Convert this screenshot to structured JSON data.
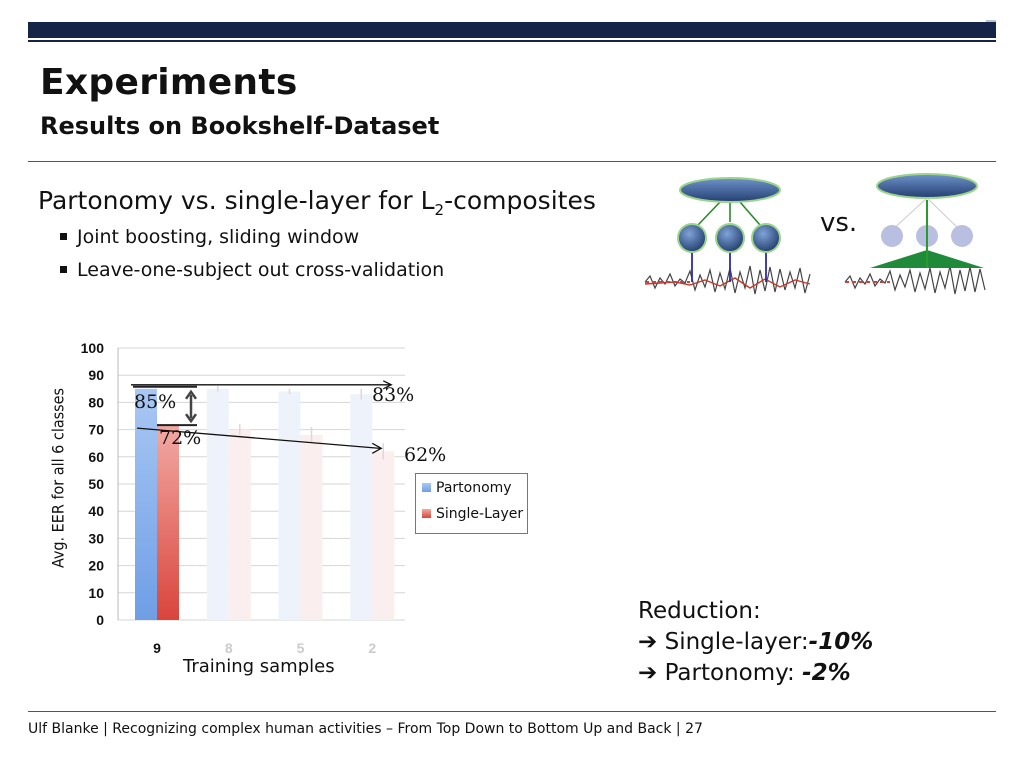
{
  "header": {
    "title": "Experiments",
    "subtitle": "Results on Bookshelf-Dataset"
  },
  "content": {
    "heading_main": "Partonomy vs. single-layer for L",
    "heading_sub": "2",
    "heading_tail": "-composites",
    "bullets": [
      "Joint boosting, sliding window",
      "Leave-one-subject out cross-validation"
    ]
  },
  "diagram": {
    "vs_label": "vs."
  },
  "reduction": {
    "title": "Reduction:",
    "line1_label": "Single-layer:",
    "line1_value": "-10%",
    "line2_label": "Partonomy: ",
    "line2_value": "-2%"
  },
  "footer": "Ulf Blanke | Recognizing complex human activities – From Top Down to Bottom Up and Back | 27",
  "chart_data": {
    "type": "bar",
    "categories": [
      "9",
      "8",
      "5",
      "2"
    ],
    "series": [
      {
        "name": "Partonomy",
        "values": [
          85,
          85,
          84,
          83
        ],
        "errors": [
          0,
          1,
          1,
          2
        ],
        "color": "#6f9ee6"
      },
      {
        "name": "Single-Layer",
        "values": [
          72,
          70,
          68,
          62
        ],
        "errors": [
          0,
          2,
          3,
          3
        ],
        "color": "#d9453d"
      }
    ],
    "xlabel": "Training samples",
    "ylabel": "Avg. EER for all 6 classes",
    "ylim": [
      0,
      100
    ],
    "yticks": [
      0,
      10,
      20,
      30,
      40,
      50,
      60,
      70,
      80,
      90,
      100
    ],
    "grid": true,
    "legend": "right",
    "annotations": [
      "85%",
      "72%",
      "83%",
      "62%"
    ]
  }
}
